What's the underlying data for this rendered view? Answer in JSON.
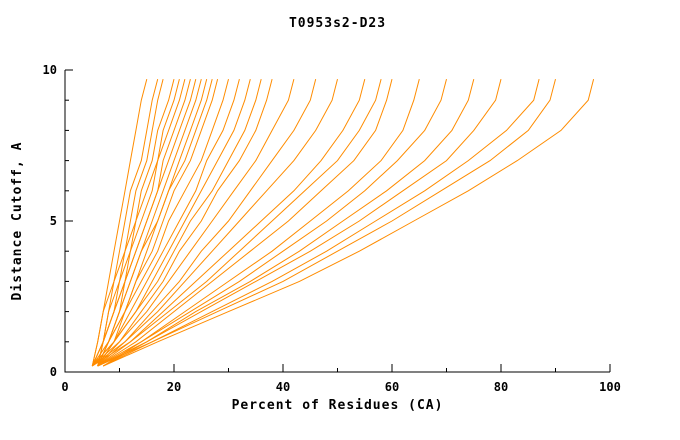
{
  "chart_data": {
    "type": "line",
    "title": "T0953s2-D23",
    "xlabel": "Percent of Residues (CA)",
    "ylabel": "Distance Cutoff, A",
    "xlim": [
      0,
      100
    ],
    "ylim": [
      0,
      10
    ],
    "x_ticks_major": [
      0,
      20,
      40,
      60,
      80,
      100
    ],
    "x_ticks_minor_step": 10,
    "y_ticks_major": [
      0,
      5,
      10
    ],
    "y_ticks_minor_step": 1,
    "grid": false,
    "legend": "none",
    "line_color": "#ff8c00",
    "axis_color": "#000000",
    "y_levels": [
      0.2,
      1,
      2,
      3,
      4,
      5,
      6,
      7,
      8,
      9,
      9.7
    ],
    "series_x": [
      [
        5,
        6,
        7,
        8,
        9,
        10,
        11,
        12,
        13,
        14,
        15
      ],
      [
        5,
        6,
        7,
        9,
        10,
        11,
        12,
        14,
        15,
        16,
        17
      ],
      [
        6,
        7,
        8,
        9,
        11,
        12,
        13,
        15,
        16,
        17,
        18
      ],
      [
        5,
        7,
        8,
        10,
        11,
        13,
        14,
        16,
        17,
        19,
        20
      ],
      [
        6,
        7,
        9,
        10,
        12,
        13,
        15,
        17,
        18,
        20,
        21
      ],
      [
        5,
        7,
        9,
        11,
        12,
        14,
        16,
        17,
        19,
        21,
        22
      ],
      [
        6,
        8,
        10,
        11,
        13,
        15,
        17,
        18,
        20,
        22,
        23
      ],
      [
        5,
        7,
        9,
        11,
        13,
        15,
        17,
        19,
        21,
        23,
        24
      ],
      [
        6,
        8,
        10,
        12,
        14,
        16,
        18,
        20,
        22,
        24,
        25
      ],
      [
        5,
        8,
        10,
        12,
        14,
        17,
        19,
        21,
        23,
        25,
        26
      ],
      [
        6,
        8,
        11,
        13,
        15,
        17,
        19,
        22,
        24,
        26,
        27
      ],
      [
        5,
        8,
        11,
        13,
        16,
        18,
        20,
        23,
        25,
        27,
        28
      ],
      [
        6,
        9,
        11,
        14,
        17,
        19,
        22,
        25,
        27,
        29,
        30
      ],
      [
        5,
        9,
        12,
        15,
        18,
        21,
        24,
        26,
        29,
        31,
        32
      ],
      [
        6,
        9,
        13,
        16,
        19,
        22,
        25,
        28,
        31,
        33,
        34
      ],
      [
        5,
        9,
        13,
        17,
        20,
        23,
        27,
        30,
        33,
        35,
        36
      ],
      [
        6,
        10,
        14,
        18,
        21,
        25,
        28,
        32,
        35,
        37,
        38
      ],
      [
        5,
        10,
        15,
        19,
        23,
        27,
        31,
        35,
        38,
        41,
        42
      ],
      [
        6,
        11,
        16,
        21,
        25,
        30,
        34,
        38,
        42,
        45,
        46
      ],
      [
        5,
        11,
        17,
        22,
        27,
        32,
        37,
        42,
        46,
        49,
        50
      ],
      [
        6,
        12,
        18,
        24,
        30,
        36,
        42,
        47,
        51,
        54,
        55
      ],
      [
        5,
        12,
        19,
        26,
        32,
        38,
        44,
        50,
        54,
        57,
        58
      ],
      [
        6,
        13,
        20,
        27,
        34,
        41,
        47,
        53,
        57,
        59,
        60
      ],
      [
        7,
        14,
        22,
        30,
        38,
        45,
        52,
        58,
        62,
        64,
        65
      ],
      [
        6,
        14,
        23,
        32,
        40,
        48,
        55,
        61,
        66,
        69,
        70
      ],
      [
        7,
        15,
        24,
        34,
        43,
        51,
        59,
        66,
        71,
        74,
        75
      ],
      [
        6,
        15,
        25,
        35,
        45,
        54,
        62,
        70,
        75,
        79,
        80
      ],
      [
        7,
        16,
        27,
        38,
        48,
        57,
        66,
        74,
        81,
        86,
        87
      ],
      [
        6,
        16,
        28,
        40,
        50,
        60,
        69,
        78,
        85,
        89,
        90
      ],
      [
        7,
        17,
        30,
        43,
        54,
        64,
        74,
        83,
        91,
        96,
        97
      ]
    ]
  }
}
